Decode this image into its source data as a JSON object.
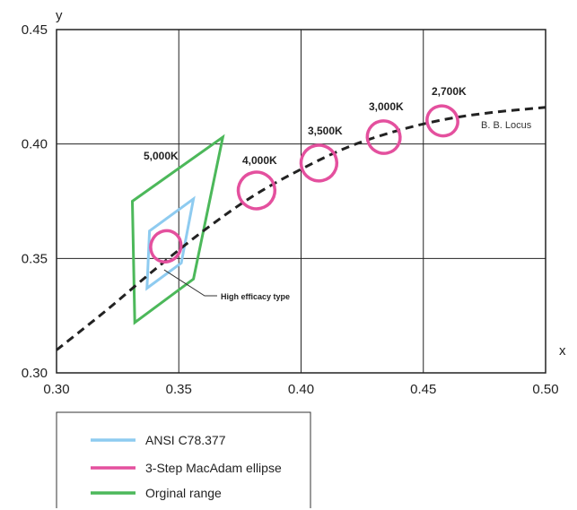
{
  "chart_data": {
    "type": "scatter",
    "title": "",
    "xlabel": "x",
    "ylabel": "y",
    "xlim": [
      0.3,
      0.5
    ],
    "ylim": [
      0.3,
      0.45
    ],
    "x_ticks": [
      "0.30",
      "0.35",
      "0.40",
      "0.45",
      "0.50"
    ],
    "y_ticks": [
      "0.30",
      "0.35",
      "0.40",
      "0.45"
    ],
    "grid": true,
    "locus": {
      "label": "B. B. Locus",
      "points": [
        [
          0.3,
          0.31
        ],
        [
          0.32,
          0.327
        ],
        [
          0.34,
          0.345
        ],
        [
          0.36,
          0.362
        ],
        [
          0.38,
          0.377
        ],
        [
          0.4,
          0.389
        ],
        [
          0.42,
          0.399
        ],
        [
          0.44,
          0.406
        ],
        [
          0.46,
          0.411
        ],
        [
          0.48,
          0.414
        ],
        [
          0.5,
          0.416
        ]
      ]
    },
    "ellipses": [
      {
        "label": "5,000K",
        "cx": 0.3447,
        "cy": 0.3553,
        "rx": 0.0065,
        "ry": 0.0065,
        "angle": 58
      },
      {
        "label": "4,000K",
        "cx": 0.3818,
        "cy": 0.3797,
        "rx": 0.0075,
        "ry": 0.008,
        "angle": 58
      },
      {
        "label": "3,500K",
        "cx": 0.4073,
        "cy": 0.3917,
        "rx": 0.0073,
        "ry": 0.0078,
        "angle": 58
      },
      {
        "label": "3,000K",
        "cx": 0.4338,
        "cy": 0.403,
        "rx": 0.0066,
        "ry": 0.0072,
        "angle": 58
      },
      {
        "label": "2,700K",
        "cx": 0.4578,
        "cy": 0.4101,
        "rx": 0.006,
        "ry": 0.0068,
        "angle": 58
      }
    ],
    "ansi_quad": [
      [
        0.338,
        0.362
      ],
      [
        0.356,
        0.376
      ],
      [
        0.351,
        0.348
      ],
      [
        0.337,
        0.337
      ]
    ],
    "original_range": [
      [
        0.331,
        0.375
      ],
      [
        0.368,
        0.403
      ],
      [
        0.356,
        0.341
      ],
      [
        0.332,
        0.322
      ]
    ],
    "annotation": "High efficacy type",
    "legend": [
      {
        "label": "ANSI C78.377",
        "color": "#8ecbf0"
      },
      {
        "label": "3-Step MacAdam ellipse",
        "color": "#e4509e"
      },
      {
        "label": "Orginal range",
        "color": "#4cb85a"
      }
    ],
    "colors": {
      "ansi": "#8ecbf0",
      "ellipse": "#e4509e",
      "range": "#4cb85a",
      "locus": "#222222",
      "grid": "#222222"
    }
  }
}
